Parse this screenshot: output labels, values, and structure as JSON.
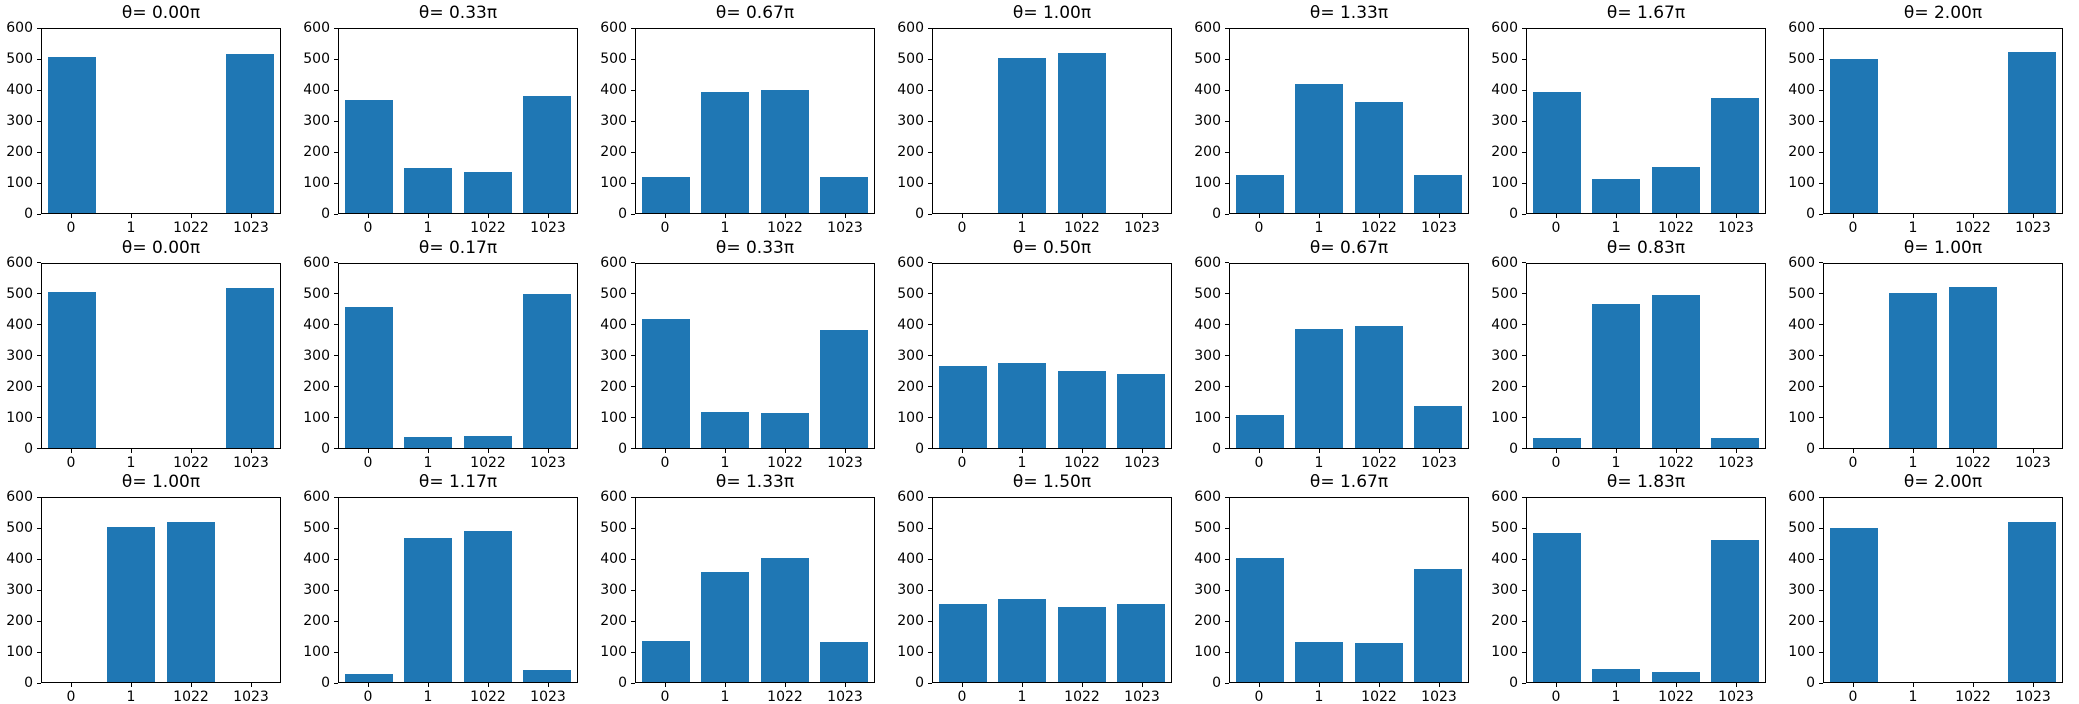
{
  "figure": {
    "background": "#ffffff",
    "axis_color": "#000000",
    "bar_color": "#1f77b4",
    "rows": 3,
    "cols": 7
  },
  "chart_data": {
    "type": "bar",
    "grid": false,
    "categories": [
      "0",
      "1",
      "1022",
      "1023"
    ],
    "ylim": [
      0,
      600
    ],
    "yticks": [
      0,
      100,
      200,
      300,
      400,
      500,
      600
    ],
    "xlabel": "",
    "ylabel": "",
    "subplots": [
      {
        "title": "θ= 0.00π",
        "values": [
          510,
          0,
          0,
          517
        ]
      },
      {
        "title": "θ= 0.33π",
        "values": [
          370,
          148,
          135,
          383
        ]
      },
      {
        "title": "θ= 0.67π",
        "values": [
          117,
          395,
          401,
          118
        ]
      },
      {
        "title": "θ= 1.00π",
        "values": [
          0,
          505,
          522,
          0
        ]
      },
      {
        "title": "θ= 1.33π",
        "values": [
          124,
          420,
          362,
          124
        ]
      },
      {
        "title": "θ= 1.67π",
        "values": [
          395,
          111,
          150,
          375
        ]
      },
      {
        "title": "θ= 2.00π",
        "values": [
          502,
          0,
          0,
          525
        ]
      },
      {
        "title": "θ= 0.00π",
        "values": [
          508,
          0,
          0,
          520
        ]
      },
      {
        "title": "θ= 0.17π",
        "values": [
          458,
          34,
          37,
          500
        ]
      },
      {
        "title": "θ= 0.33π",
        "values": [
          420,
          115,
          112,
          385
        ]
      },
      {
        "title": "θ= 0.50π",
        "values": [
          265,
          275,
          250,
          240
        ]
      },
      {
        "title": "θ= 0.67π",
        "values": [
          105,
          388,
          398,
          135
        ]
      },
      {
        "title": "θ= 0.83π",
        "values": [
          30,
          470,
          497,
          30
        ]
      },
      {
        "title": "θ= 1.00π",
        "values": [
          0,
          505,
          524,
          0
        ]
      },
      {
        "title": "θ= 1.00π",
        "values": [
          0,
          505,
          523,
          0
        ]
      },
      {
        "title": "θ= 1.17π",
        "values": [
          26,
          472,
          495,
          39
        ]
      },
      {
        "title": "θ= 1.33π",
        "values": [
          134,
          361,
          404,
          130
        ]
      },
      {
        "title": "θ= 1.50π",
        "values": [
          254,
          273,
          247,
          257
        ]
      },
      {
        "title": "θ= 1.67π",
        "values": [
          404,
          130,
          127,
          371
        ]
      },
      {
        "title": "θ= 1.83π",
        "values": [
          488,
          42,
          35,
          465
        ]
      },
      {
        "title": "θ= 2.00π",
        "values": [
          504,
          0,
          0,
          524
        ]
      }
    ]
  }
}
